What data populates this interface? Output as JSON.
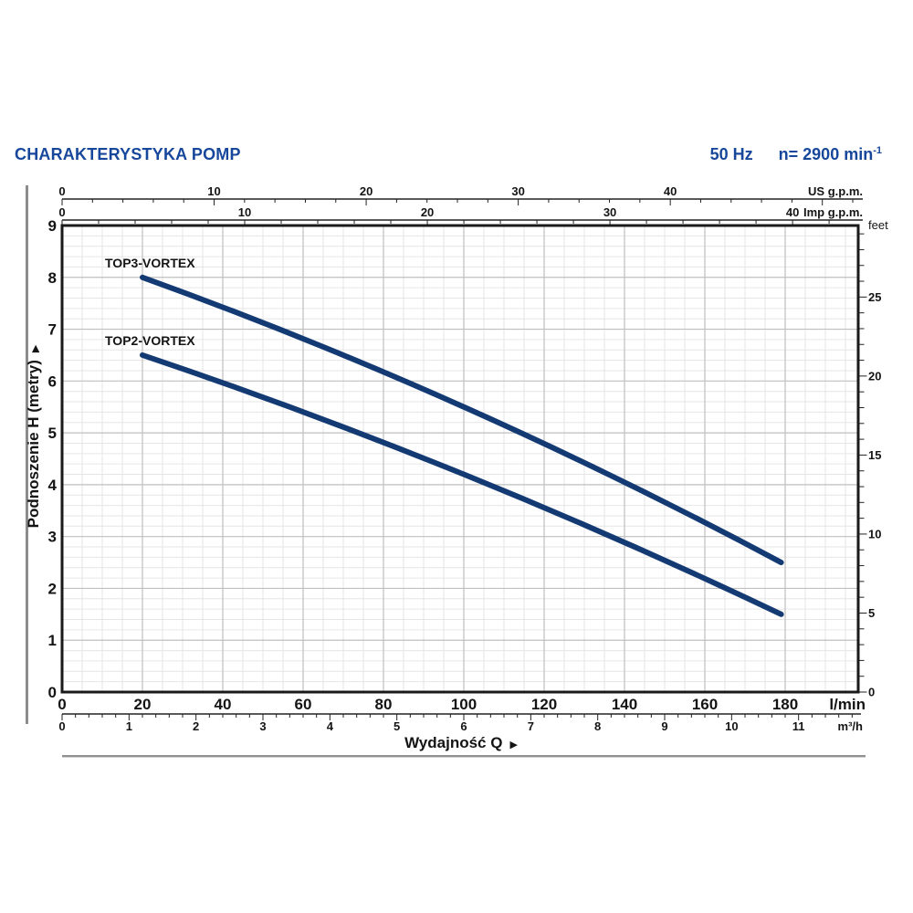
{
  "header": {
    "title": "CHARAKTERYSTYKA POMP",
    "frequency": "50 Hz",
    "speed": "n= 2900 min",
    "speed_sup": "-1"
  },
  "chart_data": {
    "type": "line",
    "title": "CHARAKTERYSTYKA POMP",
    "xlabel": "Wydajność Q",
    "ylabel": "Podnoszenie H (metry)",
    "pointer_glyph": "▶",
    "grid": "on",
    "x_axis": {
      "unit": "l/min",
      "min": 0,
      "max": 198,
      "major_tick": 20,
      "minor_tick": 5,
      "labels": [
        0,
        20,
        40,
        60,
        80,
        100,
        120,
        140,
        160,
        180
      ]
    },
    "x_axis_secondary": {
      "unit": "m³/h",
      "lmin_per_unit": 16.667,
      "major_tick": 1,
      "minor_tick": 0.2,
      "labels": [
        0,
        1,
        2,
        3,
        4,
        5,
        6,
        7,
        8,
        9,
        10,
        11
      ]
    },
    "x_axis_top_us": {
      "unit": "US g.p.m.",
      "lmin_per_unit": 3.785,
      "major_tick": 10,
      "minor_tick": 2,
      "labels": [
        0,
        10,
        20,
        30,
        40
      ]
    },
    "x_axis_top_imp": {
      "unit": "Imp g.p.m.",
      "lmin_per_unit": 4.546,
      "major_tick": 10,
      "minor_tick": 2,
      "labels": [
        0,
        10,
        20,
        30,
        40
      ]
    },
    "y_axis": {
      "unit": "metry",
      "min": 0,
      "max": 9,
      "major_tick": 1,
      "minor_tick": 0.2,
      "labels": [
        0,
        1,
        2,
        3,
        4,
        5,
        6,
        7,
        8,
        9
      ]
    },
    "y_axis_secondary": {
      "unit": "feet",
      "m_per_unit": 0.3048,
      "major_tick": 5,
      "minor_tick": 1,
      "labels": [
        0,
        5,
        10,
        15,
        20,
        25
      ]
    },
    "series": [
      {
        "name": "TOP3-VORTEX",
        "color": "#143a74",
        "points_lmin_m": [
          [
            20,
            8.0
          ],
          [
            60,
            6.8
          ],
          [
            100,
            5.5
          ],
          [
            140,
            4.0
          ],
          [
            179,
            2.5
          ]
        ]
      },
      {
        "name": "TOP2-VORTEX",
        "color": "#143a74",
        "points_lmin_m": [
          [
            20,
            6.5
          ],
          [
            60,
            5.4
          ],
          [
            100,
            4.2
          ],
          [
            140,
            2.9
          ],
          [
            179,
            1.5
          ]
        ]
      }
    ]
  }
}
